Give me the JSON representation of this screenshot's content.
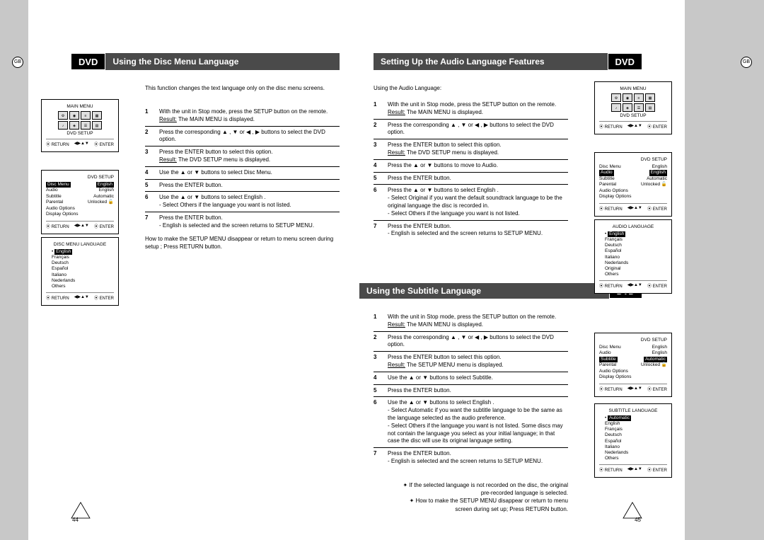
{
  "gb_label": "GB",
  "dvd_label": "DVD",
  "page_left_num": "44",
  "page_right_num": "45",
  "left_page": {
    "header": "Using the Disc Menu Language",
    "intro": "This function changes the text language only on the disc menu screens.",
    "steps": [
      {
        "n": "1",
        "t": "With the unit in Stop mode, press the SETUP button on the remote.",
        "r": "The MAIN MENU is displayed."
      },
      {
        "n": "2",
        "t": "Press the corresponding ▲ , ▼ or ◀ , ▶ buttons to select the DVD option."
      },
      {
        "n": "3",
        "t": "Press the ENTER button to select this option.",
        "r": "The DVD SETUP  menu is displayed."
      },
      {
        "n": "4",
        "t": "Use the ▲ or ▼ buttons to select Disc Menu."
      },
      {
        "n": "5",
        "t": "Press the ENTER button."
      },
      {
        "n": "6",
        "t": "Use the ▲ or ▼ buttons to select English .\n- Select Others if the language you want is not listed."
      },
      {
        "n": "7",
        "t": "Press the ENTER button.\n- English is selected and the screen returns to SETUP MENU."
      }
    ],
    "note": "How to make the SETUP MENU disappear or return to menu screen during setup ; Press RETURN button."
  },
  "right_page": {
    "header1": "Setting Up the Audio Language Features",
    "intro1": "Using the Audio Language:",
    "steps1": [
      {
        "n": "1",
        "t": "With the unit in Stop mode, press the SETUP button on the remote.",
        "r": "The MAIN MENU is displayed."
      },
      {
        "n": "2",
        "t": "Press the corresponding ▲ , ▼ or ◀ , ▶ buttons to select the DVD option."
      },
      {
        "n": "3",
        "t": "Press the ENTER button to select this option.",
        "r": "The DVD SETUP  menu is displayed."
      },
      {
        "n": "4",
        "t": "Press the ▲ or ▼ buttons to move to Audio."
      },
      {
        "n": "5",
        "t": "Press the ENTER button."
      },
      {
        "n": "6",
        "t": "Press the ▲ or ▼ buttons to select English .\n- Select Original if you want the default soundtrack language to be the original language the disc is recorded in.\n- Select Others if the language you want is not listed."
      },
      {
        "n": "7",
        "t": "Press the ENTER button.\n- English is selected and the screen returns to SETUP MENU."
      }
    ],
    "header2": "Using the Subtitle Language",
    "steps2": [
      {
        "n": "1",
        "t": "With the unit in Stop mode, press the SETUP button on the remote.",
        "r": "The MAIN MENU is displayed."
      },
      {
        "n": "2",
        "t": "Press the corresponding ▲ , ▼ or ◀ , ▶ buttons to select the DVD option."
      },
      {
        "n": "3",
        "t": "Press the ENTER button to select this option.",
        "r": "The SETUP MENU  menu is displayed."
      },
      {
        "n": "4",
        "t": "Use the ▲ or ▼ buttons to select Subtitle."
      },
      {
        "n": "5",
        "t": "Press the ENTER button."
      },
      {
        "n": "6",
        "t": "Use the ▲ or ▼ buttons to select English .\n- Select Automatic if you want the subtitle language to be the same as the language selected as the audio preference.\n- Select Others if the language you want is not listed. Some discs may not contain the language you select as your initial language; in that case the disc will use its original language setting."
      },
      {
        "n": "7",
        "t": "Press the ENTER button.\n- English is selected and the screen returns to SETUP MENU."
      }
    ],
    "notes": [
      "✦ If the selected language is not recorded on the disc, the original pre-recorded language is selected.",
      "✦ How to make the SETUP MENU disappear or return to menu screen during set up; Press RETURN button."
    ]
  },
  "osd": {
    "main_menu": "MAIN MENU",
    "dvd_setup": "DVD SETUP",
    "return": "⦿ RETURN",
    "enter": "⦿ ENTER",
    "nav": "◀▶▲▼",
    "disc_menu_lang_title": "DISC MENU LANGUAGE",
    "audio_lang_title": "AUDIO LANGUAGE",
    "subtitle_lang_title": "SUBTITLE LANGUAGE",
    "setup_rows": [
      {
        "k": "Disc Menu",
        "v": "English"
      },
      {
        "k": "Audio",
        "v": "English"
      },
      {
        "k": "Subtitle",
        "v": "Automatic"
      },
      {
        "k": "Parental",
        "v": "Unlocked 🔓"
      },
      {
        "k": "Audio Options",
        "v": ""
      },
      {
        "k": "Display Options",
        "v": ""
      }
    ],
    "langs": [
      "English",
      "Français",
      "Deutsch",
      "Español",
      "Italiano",
      "Nederlands",
      "Others"
    ],
    "langs_audio": [
      "English",
      "Français",
      "Deutsch",
      "Español",
      "Italiano",
      "Nederlands",
      "Original",
      "Others"
    ],
    "langs_sub": [
      "Automatic",
      "English",
      "Français",
      "Deutsch",
      "Español",
      "Italiano",
      "Nederlands",
      "Others"
    ]
  },
  "result_label": "Result:"
}
